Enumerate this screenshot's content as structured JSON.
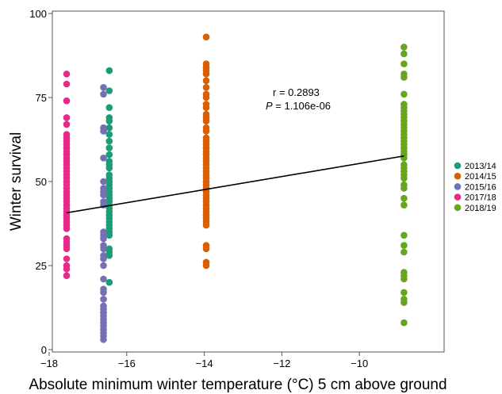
{
  "chart_data": {
    "type": "scatter",
    "title": "",
    "xlabel": "Absolute minimum winter temperature (°C) 5 cm above ground",
    "ylabel": "Winter survival",
    "xlim": [
      -18.1,
      -8.0
    ],
    "ylim": [
      0,
      100
    ],
    "xticks": [
      -18,
      -16,
      -14,
      -12,
      -10
    ],
    "yticks": [
      0,
      25,
      50,
      75,
      100
    ],
    "xtick_labels": [
      "−18",
      "−16",
      "−14",
      "−12",
      "−10"
    ],
    "ytick_labels": [
      "0",
      "25",
      "50",
      "75",
      "100"
    ],
    "grid": false,
    "legend_position": "right",
    "annotation": {
      "r_text": "r =  0.2893",
      "p_label": "P",
      "p_text": " =  1.106e-06"
    },
    "regression": {
      "x": [
        -17.55,
        -8.85
      ],
      "y": [
        40.7,
        57.6
      ],
      "color": "#000000"
    },
    "series": [
      {
        "name": "2013/14",
        "color": "#1b9e77",
        "x": -16.45,
        "values": [
          83,
          77,
          72,
          69,
          68,
          66,
          64,
          62,
          60,
          58,
          56,
          55,
          54,
          52,
          51,
          50,
          49,
          48,
          47,
          46,
          45,
          44,
          43,
          42,
          41,
          40,
          39,
          38,
          37,
          36,
          35,
          34,
          30,
          29,
          28,
          20
        ]
      },
      {
        "name": "2014/15",
        "color": "#d95f02",
        "x": -13.95,
        "values": [
          93,
          85,
          84,
          83,
          82,
          80,
          78,
          76,
          75,
          73,
          72,
          70,
          69,
          68,
          66,
          65,
          63,
          62,
          61,
          60,
          59,
          58,
          57,
          56,
          55,
          54,
          53,
          52,
          51,
          50,
          49,
          48,
          47,
          46,
          45,
          44,
          43,
          42,
          41,
          40,
          39,
          38,
          37,
          31,
          30,
          26,
          25
        ]
      },
      {
        "name": "2015/16",
        "color": "#7570b3",
        "x": -16.6,
        "values": [
          78,
          76,
          66,
          65,
          57,
          50,
          48,
          47,
          46,
          44,
          43,
          35,
          34,
          33,
          31,
          30,
          28,
          27,
          25,
          21,
          18,
          17,
          15,
          13,
          12,
          11,
          10,
          9,
          8,
          7,
          6,
          5,
          4,
          3
        ]
      },
      {
        "name": "2017/18",
        "color": "#e7298a",
        "x": -17.55,
        "values": [
          82,
          79,
          74,
          69,
          67,
          64,
          63,
          62,
          61,
          60,
          59,
          58,
          57,
          56,
          55,
          54,
          53,
          52,
          51,
          50,
          49,
          48,
          47,
          46,
          45,
          44,
          43,
          42,
          41,
          40,
          39,
          38,
          37,
          36,
          33,
          32,
          31,
          30,
          27,
          25,
          24,
          22
        ]
      },
      {
        "name": "2018/19",
        "color": "#66a61e",
        "x": -8.85,
        "values": [
          90,
          88,
          85,
          82,
          81,
          76,
          73,
          72,
          71,
          70,
          69,
          68,
          67,
          66,
          65,
          64,
          63,
          62,
          61,
          60,
          59,
          58,
          57,
          55,
          54,
          53,
          52,
          51,
          49,
          48,
          45,
          43,
          34,
          31,
          29,
          23,
          22,
          21,
          17,
          15,
          14,
          8
        ]
      }
    ]
  }
}
